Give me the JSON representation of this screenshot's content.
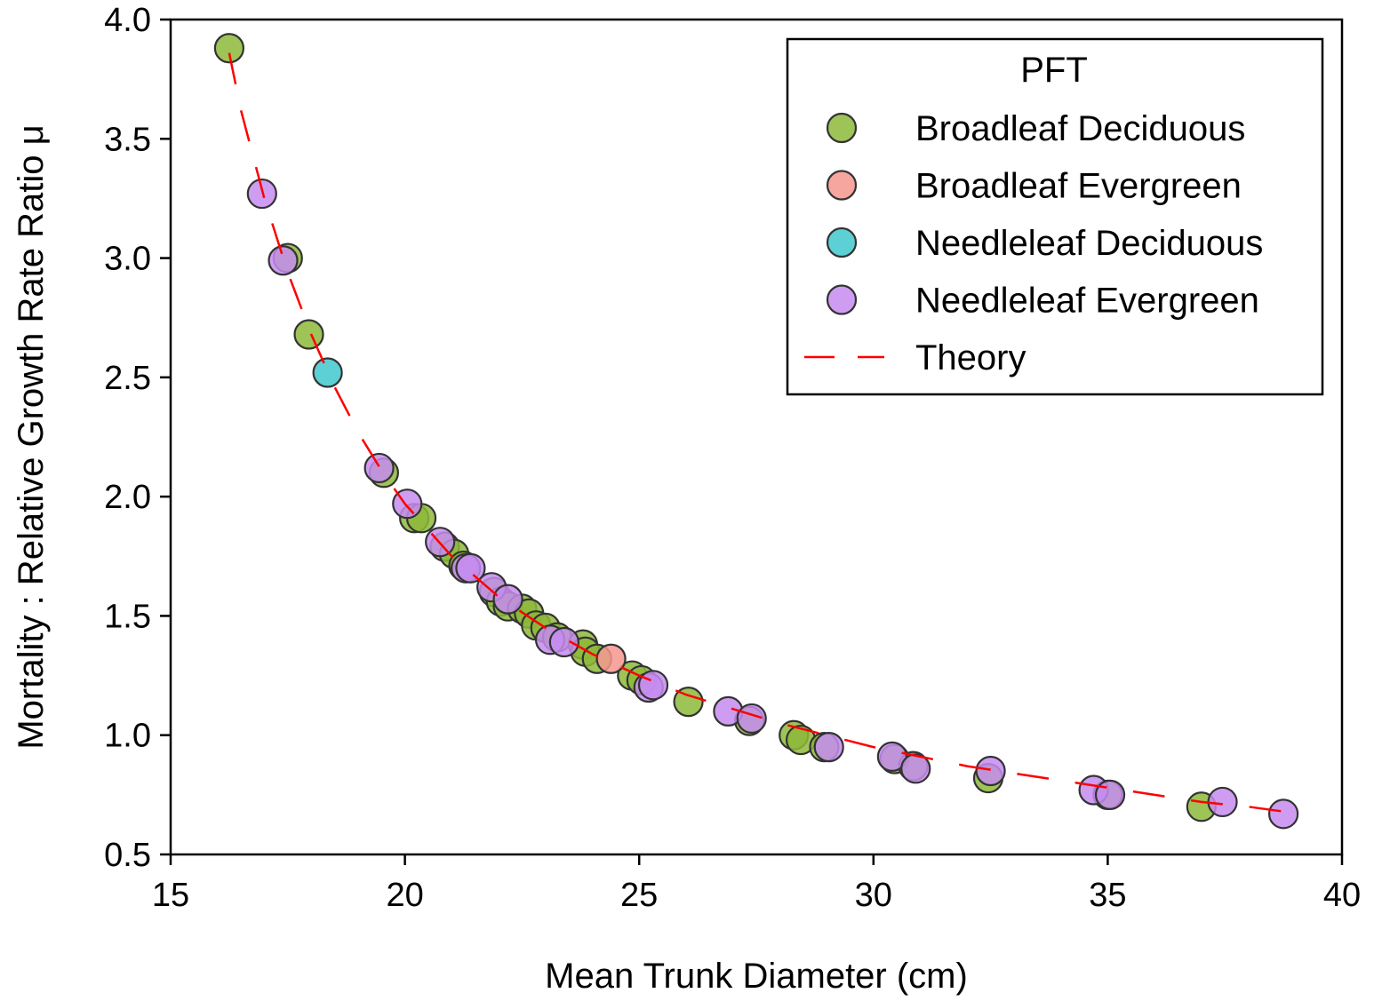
{
  "chart_data": {
    "type": "scatter",
    "xlabel": "Mean Trunk Diameter (cm)",
    "ylabel": "Mortality : Relative Growth Rate Ratio μ",
    "xlim": [
      15,
      40
    ],
    "ylim": [
      0.5,
      4.0
    ],
    "xticks": [
      "15",
      "20",
      "25",
      "30",
      "35",
      "40"
    ],
    "yticks": [
      "0.5",
      "1.0",
      "1.5",
      "2.0",
      "2.5",
      "3.0",
      "3.5",
      "4.0"
    ],
    "grid": false,
    "legend": {
      "title": "PFT",
      "position": "top-right",
      "theory_label": "Theory"
    },
    "colors": {
      "Broadleaf Deciduous": "#8db83a",
      "Broadleaf Evergreen": "#f4978e",
      "Needleleaf Deciduous": "#3fc8cc",
      "Needleleaf Evergreen": "#c58cf0",
      "Theory": "#ff0000",
      "marker_edge": "#333333"
    },
    "series": [
      {
        "name": "Broadleaf Deciduous",
        "points": [
          [
            16.25,
            3.88
          ],
          [
            17.5,
            3.0
          ],
          [
            17.95,
            2.68
          ],
          [
            19.55,
            2.1
          ],
          [
            20.2,
            1.91
          ],
          [
            20.35,
            1.91
          ],
          [
            20.85,
            1.79
          ],
          [
            21.05,
            1.76
          ],
          [
            21.25,
            1.71
          ],
          [
            21.9,
            1.6
          ],
          [
            22.05,
            1.56
          ],
          [
            22.2,
            1.54
          ],
          [
            22.5,
            1.53
          ],
          [
            22.65,
            1.51
          ],
          [
            22.8,
            1.46
          ],
          [
            23.0,
            1.45
          ],
          [
            23.25,
            1.41
          ],
          [
            23.8,
            1.38
          ],
          [
            23.85,
            1.35
          ],
          [
            24.1,
            1.32
          ],
          [
            24.85,
            1.25
          ],
          [
            25.05,
            1.23
          ],
          [
            26.05,
            1.14
          ],
          [
            27.35,
            1.06
          ],
          [
            28.3,
            1.0
          ],
          [
            28.45,
            0.98
          ],
          [
            28.95,
            0.95
          ],
          [
            30.45,
            0.9
          ],
          [
            30.85,
            0.87
          ],
          [
            32.45,
            0.82
          ],
          [
            35.0,
            0.75
          ],
          [
            37.0,
            0.7
          ]
        ]
      },
      {
        "name": "Broadleaf Evergreen",
        "points": [
          [
            24.4,
            1.32
          ]
        ]
      },
      {
        "name": "Needleleaf Deciduous",
        "points": [
          [
            18.35,
            2.52
          ]
        ]
      },
      {
        "name": "Needleleaf Evergreen",
        "points": [
          [
            16.95,
            3.27
          ],
          [
            17.4,
            2.99
          ],
          [
            19.45,
            2.12
          ],
          [
            20.05,
            1.97
          ],
          [
            20.75,
            1.81
          ],
          [
            21.3,
            1.7
          ],
          [
            21.4,
            1.7
          ],
          [
            21.85,
            1.62
          ],
          [
            22.2,
            1.57
          ],
          [
            23.1,
            1.4
          ],
          [
            23.4,
            1.39
          ],
          [
            25.2,
            1.2
          ],
          [
            25.3,
            1.21
          ],
          [
            26.9,
            1.1
          ],
          [
            27.4,
            1.07
          ],
          [
            29.05,
            0.95
          ],
          [
            30.4,
            0.91
          ],
          [
            30.9,
            0.86
          ],
          [
            32.5,
            0.85
          ],
          [
            34.7,
            0.77
          ],
          [
            35.05,
            0.75
          ],
          [
            37.45,
            0.72
          ],
          [
            38.75,
            0.67
          ]
        ]
      },
      {
        "name": "Theory",
        "style": "dashed-line",
        "x": [
          16.25,
          16.5,
          17,
          17.5,
          18,
          18.5,
          19,
          19.5,
          20,
          21,
          22,
          23,
          24,
          25,
          26,
          27,
          28,
          29,
          30,
          31,
          32,
          33,
          34,
          35,
          36,
          37,
          38,
          38.75
        ],
        "y": [
          3.86,
          3.62,
          3.25,
          2.94,
          2.68,
          2.46,
          2.27,
          2.11,
          1.97,
          1.75,
          1.58,
          1.45,
          1.34,
          1.25,
          1.17,
          1.11,
          1.05,
          1.0,
          0.95,
          0.91,
          0.87,
          0.84,
          0.81,
          0.78,
          0.75,
          0.72,
          0.7,
          0.68
        ]
      }
    ]
  }
}
